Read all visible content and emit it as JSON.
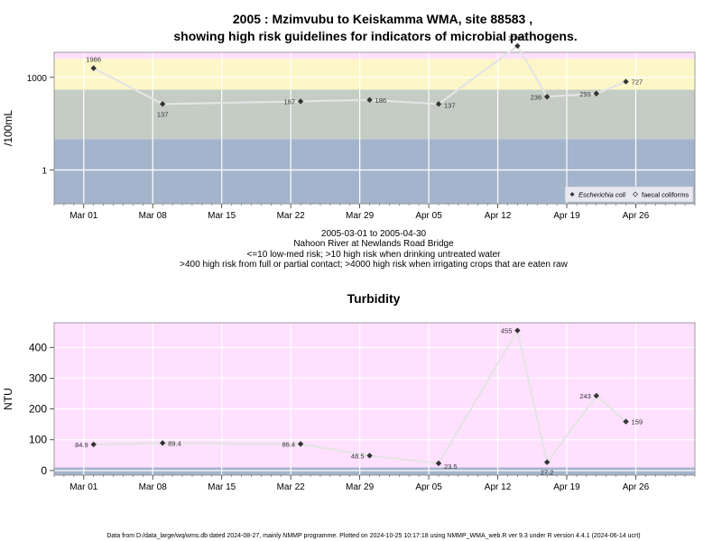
{
  "main_title_line1": "2005 : Mzimvubu to Keiskamma WMA, site 88583 ,",
  "main_title_line2": "showing high risk guidelines for indicators of microbial pathogens.",
  "footer": "Data from D:/data_large/wq/wms.db dated 2024-08-27, mainly NMMP programme. Plotted on 2024-10-25 10:17:18 using NMMP_WMA_web.R ver 9.3 under R version 4.4.1 (2024-06-14 ucrt)",
  "colors": {
    "band_pink": "#ffe0ff",
    "band_yellow": "#fdf7c8",
    "band_sage": "#c4ccc4",
    "band_blue": "#a4b4cc",
    "line": "#e4e4e4",
    "point": "#333333",
    "grid": "#ffffff"
  },
  "chart_data": [
    {
      "type": "line",
      "title": "",
      "ylabel": "/100mL",
      "yscale": "log",
      "ylim": [
        0.08,
        6500
      ],
      "yticks": [
        {
          "value": 1,
          "label": "1"
        },
        {
          "value": 1000,
          "label": "1000"
        }
      ],
      "xlim": [
        "2005-02-26",
        "2005-05-02"
      ],
      "xticks": [
        {
          "date": "2005-03-01",
          "label": "Mar 01"
        },
        {
          "date": "2005-03-08",
          "label": "Mar 08"
        },
        {
          "date": "2005-03-15",
          "label": "Mar 15"
        },
        {
          "date": "2005-03-22",
          "label": "Mar 22"
        },
        {
          "date": "2005-03-29",
          "label": "Mar 29"
        },
        {
          "date": "2005-04-05",
          "label": "Apr 05"
        },
        {
          "date": "2005-04-12",
          "label": "Apr 12"
        },
        {
          "date": "2005-04-19",
          "label": "Apr 19"
        },
        {
          "date": "2005-04-26",
          "label": "Apr 26"
        }
      ],
      "bands": [
        {
          "from": 0.08,
          "to": 10,
          "color": "#a4b4cc"
        },
        {
          "from": 10,
          "to": 400,
          "color": "#c4ccc4"
        },
        {
          "from": 400,
          "to": 4000,
          "color": "#fdf7c8"
        },
        {
          "from": 4000,
          "to": 6500,
          "color": "#ffe0ff"
        }
      ],
      "series": [
        {
          "name": "Escherichia coli",
          "points": [
            {
              "x": "2005-03-02",
              "y": 1986,
              "label": "1986"
            },
            {
              "x": "2005-03-09",
              "y": 137,
              "label": "137"
            },
            {
              "x": "2005-03-23",
              "y": 167,
              "label": "167"
            },
            {
              "x": "2005-03-30",
              "y": 186,
              "label": "186"
            },
            {
              "x": "2005-04-06",
              "y": 137,
              "label": "137"
            },
            {
              "x": "2005-04-14",
              "y": 10460,
              "label": "10460"
            },
            {
              "x": "2005-04-17",
              "y": 236,
              "label": "236"
            },
            {
              "x": "2005-04-22",
              "y": 299,
              "label": "299"
            },
            {
              "x": "2005-04-25",
              "y": 727,
              "label": "727"
            }
          ]
        }
      ],
      "legend": {
        "position": "bottom-right",
        "entries": [
          "Escherichia coli",
          "faecal coliforms"
        ]
      }
    },
    {
      "type": "line",
      "title": "Turbidity",
      "ylabel": "NTU",
      "yscale": "linear",
      "ylim": [
        -15,
        480
      ],
      "yticks": [
        {
          "value": 0,
          "label": "0"
        },
        {
          "value": 100,
          "label": "100"
        },
        {
          "value": 200,
          "label": "200"
        },
        {
          "value": 300,
          "label": "300"
        },
        {
          "value": 400,
          "label": "400"
        }
      ],
      "xlim": [
        "2005-02-26",
        "2005-05-02"
      ],
      "xticks": [
        {
          "date": "2005-03-01",
          "label": "Mar 01"
        },
        {
          "date": "2005-03-08",
          "label": "Mar 08"
        },
        {
          "date": "2005-03-15",
          "label": "Mar 15"
        },
        {
          "date": "2005-03-22",
          "label": "Mar 22"
        },
        {
          "date": "2005-03-29",
          "label": "Mar 29"
        },
        {
          "date": "2005-04-05",
          "label": "Apr 05"
        },
        {
          "date": "2005-04-12",
          "label": "Apr 12"
        },
        {
          "date": "2005-04-19",
          "label": "Apr 19"
        },
        {
          "date": "2005-04-26",
          "label": "Apr 26"
        }
      ],
      "bands": [
        {
          "from": -15,
          "to": 10,
          "color": "#a4b4cc"
        },
        {
          "from": 10,
          "to": 480,
          "color": "#ffe0ff"
        }
      ],
      "series": [
        {
          "name": "",
          "points": [
            {
              "x": "2005-03-02",
              "y": 84.9,
              "label": "84.9"
            },
            {
              "x": "2005-03-09",
              "y": 89.4,
              "label": "89.4"
            },
            {
              "x": "2005-03-23",
              "y": 86.4,
              "label": "86.4"
            },
            {
              "x": "2005-03-30",
              "y": 48.5,
              "label": "48.5"
            },
            {
              "x": "2005-04-06",
              "y": 23.5,
              "label": "23.5"
            },
            {
              "x": "2005-04-14",
              "y": 455,
              "label": "455"
            },
            {
              "x": "2005-04-17",
              "y": 27.2,
              "label": "27.2"
            },
            {
              "x": "2005-04-22",
              "y": 243,
              "label": "243"
            },
            {
              "x": "2005-04-25",
              "y": 159,
              "label": "159"
            }
          ]
        }
      ]
    }
  ],
  "caption": {
    "date_range": "2005-03-01 to 2005-04-30",
    "site_name": "Nahoon River at Newlands Road Bridge",
    "guideline1": "<=10 low-med risk; >10 high risk when drinking untreated water",
    "guideline2": ">400 high risk from full or partial contact; >4000 high risk when irrigating crops that are eaten raw"
  }
}
